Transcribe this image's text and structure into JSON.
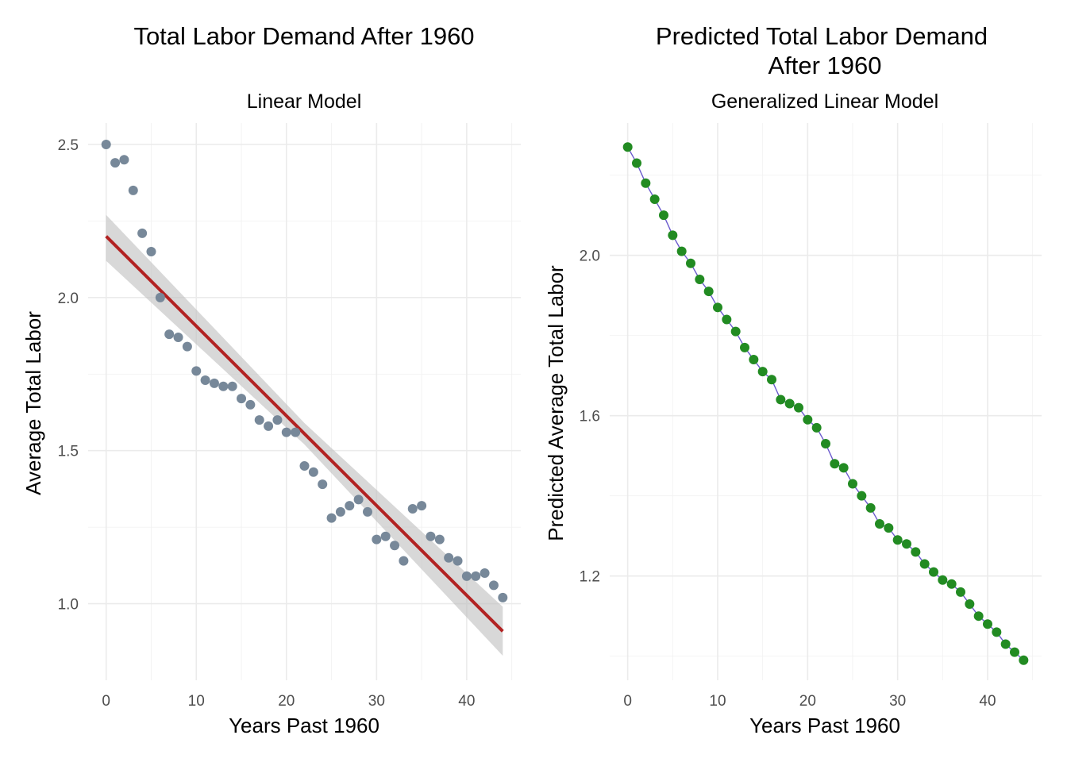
{
  "colors": {
    "points_left": "#778899",
    "fit_line": "#b22222",
    "ribbon": "#bebebe",
    "points_right": "#228b22",
    "connector_line": "#6a5acd"
  },
  "chart_data": [
    {
      "type": "scatter",
      "title": "Total Labor Demand After 1960",
      "subtitle": "Linear Model",
      "xlabel": "Years Past 1960",
      "ylabel": "Average Total Labor",
      "xlim": [
        -2,
        46
      ],
      "ylim": [
        0.75,
        2.57
      ],
      "xticks": [
        0,
        10,
        20,
        30,
        40
      ],
      "xtick_labels": [
        "0",
        "10",
        "20",
        "30",
        "40"
      ],
      "yticks": [
        1.0,
        1.5,
        2.0,
        2.5
      ],
      "ytick_labels": [
        "1.0",
        "1.5",
        "2.0",
        "2.5"
      ],
      "grid": true,
      "x": [
        0,
        1,
        2,
        3,
        4,
        5,
        6,
        7,
        8,
        9,
        10,
        11,
        12,
        13,
        14,
        15,
        16,
        17,
        18,
        19,
        20,
        21,
        22,
        23,
        24,
        25,
        26,
        27,
        28,
        29,
        30,
        31,
        32,
        33,
        34,
        35,
        36,
        37,
        38,
        39,
        40,
        41,
        42,
        43,
        44
      ],
      "y": [
        2.5,
        2.44,
        2.45,
        2.35,
        2.21,
        2.15,
        2.0,
        1.88,
        1.87,
        1.84,
        1.76,
        1.73,
        1.72,
        1.71,
        1.71,
        1.67,
        1.65,
        1.6,
        1.58,
        1.6,
        1.56,
        1.56,
        1.45,
        1.43,
        1.39,
        1.28,
        1.3,
        1.32,
        1.34,
        1.3,
        1.21,
        1.22,
        1.19,
        1.14,
        1.31,
        1.32,
        1.22,
        1.21,
        1.15,
        1.14,
        1.09,
        1.09,
        1.1,
        1.06,
        1.02
      ],
      "fit": {
        "x": [
          0,
          44
        ],
        "y": [
          2.2,
          0.91
        ]
      },
      "ribbon": {
        "x": [
          0,
          22,
          44
        ],
        "lower": [
          2.12,
          1.52,
          0.83
        ],
        "upper": [
          2.27,
          1.59,
          0.99
        ]
      }
    },
    {
      "type": "line",
      "title": "Predicted Total Labor Demand After 1960",
      "title_lines": [
        "Predicted Total Labor Demand",
        "After 1960"
      ],
      "subtitle": "Generalized Linear Model",
      "xlabel": "Years Past 1960",
      "ylabel": "Predicted Average Total Labor",
      "xlim": [
        -2,
        46
      ],
      "ylim": [
        0.94,
        2.33
      ],
      "xticks": [
        0,
        10,
        20,
        30,
        40
      ],
      "xtick_labels": [
        "0",
        "10",
        "20",
        "30",
        "40"
      ],
      "yticks": [
        1.2,
        1.6,
        2.0
      ],
      "ytick_labels": [
        "1.2",
        "1.6",
        "2.0"
      ],
      "grid": true,
      "x": [
        0,
        1,
        2,
        3,
        4,
        5,
        6,
        7,
        8,
        9,
        10,
        11,
        12,
        13,
        14,
        15,
        16,
        17,
        18,
        19,
        20,
        21,
        22,
        23,
        24,
        25,
        26,
        27,
        28,
        29,
        30,
        31,
        32,
        33,
        34,
        35,
        36,
        37,
        38,
        39,
        40,
        41,
        42,
        43,
        44
      ],
      "y": [
        2.27,
        2.23,
        2.18,
        2.14,
        2.1,
        2.05,
        2.01,
        1.98,
        1.94,
        1.91,
        1.87,
        1.84,
        1.81,
        1.77,
        1.74,
        1.71,
        1.69,
        1.64,
        1.63,
        1.62,
        1.59,
        1.57,
        1.53,
        1.48,
        1.47,
        1.43,
        1.4,
        1.37,
        1.33,
        1.32,
        1.29,
        1.28,
        1.26,
        1.23,
        1.21,
        1.19,
        1.18,
        1.16,
        1.13,
        1.1,
        1.08,
        1.06,
        1.03,
        1.01,
        0.99
      ]
    }
  ]
}
